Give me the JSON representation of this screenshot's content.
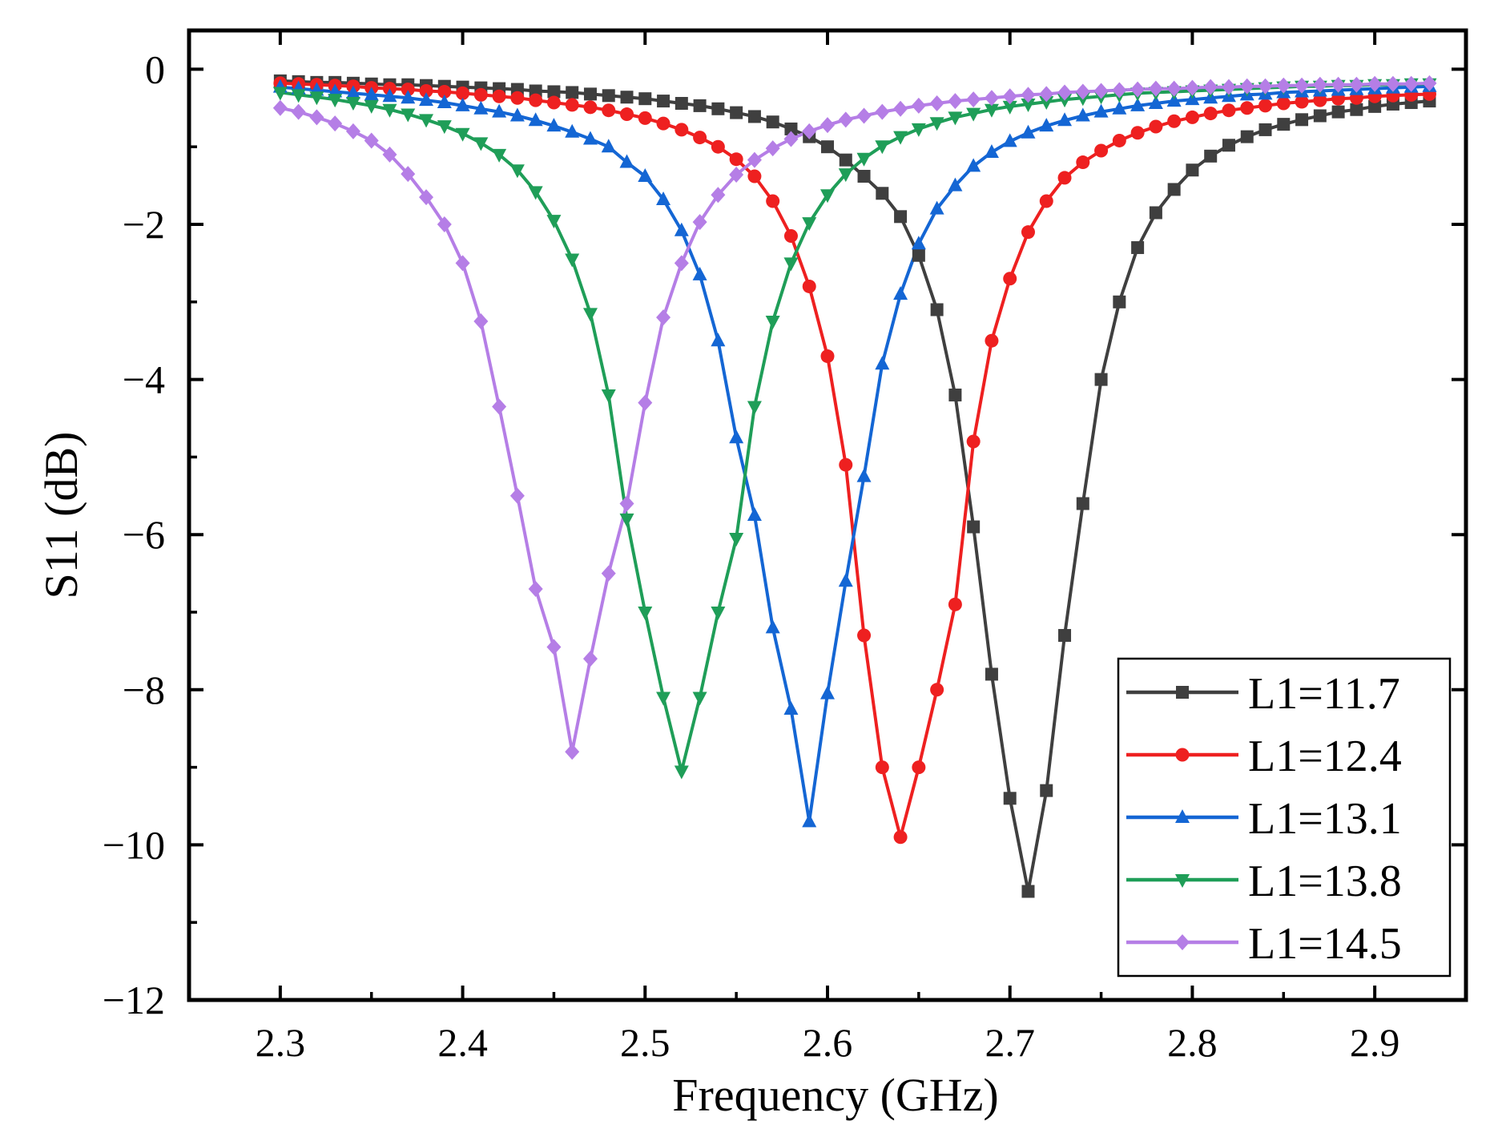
{
  "chart_data": {
    "type": "line",
    "title": "",
    "xlabel": "Frequency (GHz)",
    "ylabel": "S11 (dB)",
    "xlim": [
      2.25,
      2.95
    ],
    "ylim": [
      -12,
      0.5
    ],
    "x_ticks": [
      2.3,
      2.4,
      2.5,
      2.6,
      2.7,
      2.8,
      2.9
    ],
    "x_tick_labels": [
      "2.3",
      "2.4",
      "2.5",
      "2.6",
      "2.7",
      "2.8",
      "2.9"
    ],
    "y_ticks": [
      0,
      -2,
      -4,
      -6,
      -8,
      -10,
      -12
    ],
    "y_tick_labels": [
      "0",
      "−2",
      "−4",
      "−6",
      "−8",
      "−10",
      "−12"
    ],
    "grid": false,
    "legend_position": "bottom-right",
    "x_start": 2.3,
    "x_step": 0.01,
    "series": [
      {
        "name": "L1=11.7",
        "color": "#3f3f3f",
        "marker": "square",
        "values": [
          -0.15,
          -0.16,
          -0.17,
          -0.17,
          -0.18,
          -0.19,
          -0.2,
          -0.2,
          -0.21,
          -0.22,
          -0.23,
          -0.24,
          -0.25,
          -0.26,
          -0.28,
          -0.29,
          -0.3,
          -0.32,
          -0.34,
          -0.36,
          -0.38,
          -0.41,
          -0.44,
          -0.47,
          -0.51,
          -0.56,
          -0.61,
          -0.68,
          -0.77,
          -0.87,
          -1.0,
          -1.17,
          -1.38,
          -1.6,
          -1.9,
          -2.4,
          -3.1,
          -4.2,
          -5.9,
          -7.8,
          -9.4,
          -10.6,
          -9.3,
          -7.3,
          -5.6,
          -4.0,
          -3.0,
          -2.3,
          -1.85,
          -1.55,
          -1.3,
          -1.12,
          -0.98,
          -0.87,
          -0.78,
          -0.71,
          -0.65,
          -0.6,
          -0.55,
          -0.52,
          -0.48,
          -0.45,
          -0.43,
          -0.41
        ]
      },
      {
        "name": "L1=12.4",
        "color": "#ee2020",
        "marker": "circle",
        "values": [
          -0.18,
          -0.19,
          -0.2,
          -0.21,
          -0.22,
          -0.24,
          -0.25,
          -0.26,
          -0.28,
          -0.29,
          -0.31,
          -0.33,
          -0.35,
          -0.37,
          -0.4,
          -0.43,
          -0.46,
          -0.49,
          -0.53,
          -0.58,
          -0.63,
          -0.7,
          -0.78,
          -0.88,
          -1.0,
          -1.16,
          -1.38,
          -1.7,
          -2.15,
          -2.8,
          -3.7,
          -5.1,
          -7.3,
          -9.0,
          -9.9,
          -9.0,
          -8.0,
          -6.9,
          -4.8,
          -3.5,
          -2.7,
          -2.1,
          -1.7,
          -1.4,
          -1.2,
          -1.05,
          -0.92,
          -0.82,
          -0.74,
          -0.67,
          -0.62,
          -0.57,
          -0.53,
          -0.5,
          -0.47,
          -0.44,
          -0.42,
          -0.4,
          -0.38,
          -0.37,
          -0.35,
          -0.34,
          -0.33,
          -0.32
        ]
      },
      {
        "name": "L1=13.1",
        "color": "#1466d4",
        "marker": "triangle-up",
        "values": [
          -0.23,
          -0.25,
          -0.27,
          -0.29,
          -0.31,
          -0.33,
          -0.35,
          -0.37,
          -0.4,
          -0.43,
          -0.47,
          -0.51,
          -0.55,
          -0.6,
          -0.66,
          -0.73,
          -0.81,
          -0.9,
          -1.0,
          -1.2,
          -1.38,
          -1.68,
          -2.08,
          -2.65,
          -3.5,
          -4.75,
          -5.75,
          -7.2,
          -8.25,
          -9.7,
          -8.05,
          -6.6,
          -5.25,
          -3.8,
          -2.9,
          -2.25,
          -1.8,
          -1.5,
          -1.25,
          -1.07,
          -0.93,
          -0.82,
          -0.73,
          -0.66,
          -0.6,
          -0.55,
          -0.51,
          -0.47,
          -0.44,
          -0.41,
          -0.39,
          -0.37,
          -0.35,
          -0.33,
          -0.32,
          -0.3,
          -0.29,
          -0.28,
          -0.27,
          -0.26,
          -0.25,
          -0.24,
          -0.23,
          -0.22
        ]
      },
      {
        "name": "L1=13.8",
        "color": "#1f9e58",
        "marker": "triangle-down",
        "values": [
          -0.3,
          -0.33,
          -0.36,
          -0.39,
          -0.43,
          -0.47,
          -0.52,
          -0.58,
          -0.65,
          -0.73,
          -0.83,
          -0.95,
          -1.1,
          -1.3,
          -1.58,
          -1.95,
          -2.45,
          -3.15,
          -4.2,
          -5.8,
          -7.0,
          -8.1,
          -9.05,
          -8.1,
          -7.0,
          -6.05,
          -4.35,
          -3.25,
          -2.5,
          -1.98,
          -1.62,
          -1.35,
          -1.15,
          -0.99,
          -0.87,
          -0.77,
          -0.69,
          -0.62,
          -0.57,
          -0.52,
          -0.48,
          -0.45,
          -0.42,
          -0.39,
          -0.37,
          -0.35,
          -0.33,
          -0.31,
          -0.3,
          -0.29,
          -0.28,
          -0.27,
          -0.26,
          -0.25,
          -0.24,
          -0.23,
          -0.22,
          -0.22,
          -0.21,
          -0.21,
          -0.2,
          -0.2,
          -0.19,
          -0.19
        ]
      },
      {
        "name": "L1=14.5",
        "color": "#b57ee6",
        "marker": "diamond",
        "values": [
          -0.5,
          -0.55,
          -0.62,
          -0.7,
          -0.8,
          -0.92,
          -1.1,
          -1.35,
          -1.65,
          -2.0,
          -2.5,
          -3.25,
          -4.35,
          -5.5,
          -6.7,
          -7.45,
          -8.8,
          -7.6,
          -6.5,
          -5.6,
          -4.3,
          -3.2,
          -2.5,
          -1.97,
          -1.62,
          -1.36,
          -1.17,
          -1.02,
          -0.9,
          -0.8,
          -0.72,
          -0.65,
          -0.6,
          -0.55,
          -0.51,
          -0.47,
          -0.44,
          -0.41,
          -0.39,
          -0.37,
          -0.35,
          -0.33,
          -0.32,
          -0.3,
          -0.29,
          -0.28,
          -0.27,
          -0.26,
          -0.25,
          -0.25,
          -0.24,
          -0.23,
          -0.23,
          -0.22,
          -0.22,
          -0.21,
          -0.21,
          -0.2,
          -0.2,
          -0.2,
          -0.19,
          -0.19,
          -0.19,
          -0.18
        ]
      }
    ]
  }
}
